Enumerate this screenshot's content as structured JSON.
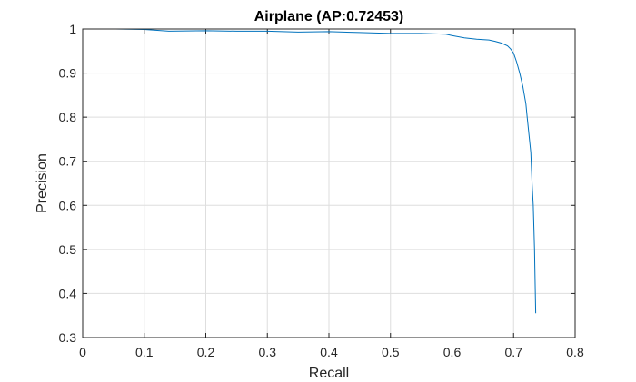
{
  "chart_data": {
    "type": "line",
    "title": "Airplane (AP:0.72453)",
    "xlabel": "Recall",
    "ylabel": "Precision",
    "xlim": [
      0,
      0.8
    ],
    "ylim": [
      0.3,
      1
    ],
    "xticks": [
      "0",
      "0.1",
      "0.2",
      "0.3",
      "0.4",
      "0.5",
      "0.6",
      "0.7",
      "0.8"
    ],
    "yticks": [
      "0.3",
      "0.4",
      "0.5",
      "0.6",
      "0.7",
      "0.8",
      "0.9",
      "1"
    ],
    "grid": true,
    "line_color": "#0072bd",
    "series": [
      {
        "x": [
          0,
          0.05,
          0.1,
          0.14,
          0.2,
          0.25,
          0.3,
          0.35,
          0.4,
          0.45,
          0.5,
          0.55,
          0.59,
          0.6,
          0.62,
          0.64,
          0.66,
          0.67,
          0.68,
          0.69,
          0.695,
          0.7,
          0.705,
          0.71,
          0.715,
          0.72,
          0.722,
          0.725,
          0.728,
          0.73,
          0.732,
          0.734,
          0.735,
          0.736
        ],
        "y": [
          1.0,
          1.0,
          0.999,
          0.995,
          0.996,
          0.995,
          0.995,
          0.993,
          0.994,
          0.992,
          0.99,
          0.99,
          0.988,
          0.985,
          0.98,
          0.977,
          0.975,
          0.972,
          0.968,
          0.962,
          0.955,
          0.945,
          0.925,
          0.9,
          0.87,
          0.83,
          0.8,
          0.76,
          0.72,
          0.65,
          0.6,
          0.5,
          0.42,
          0.355
        ]
      }
    ]
  }
}
